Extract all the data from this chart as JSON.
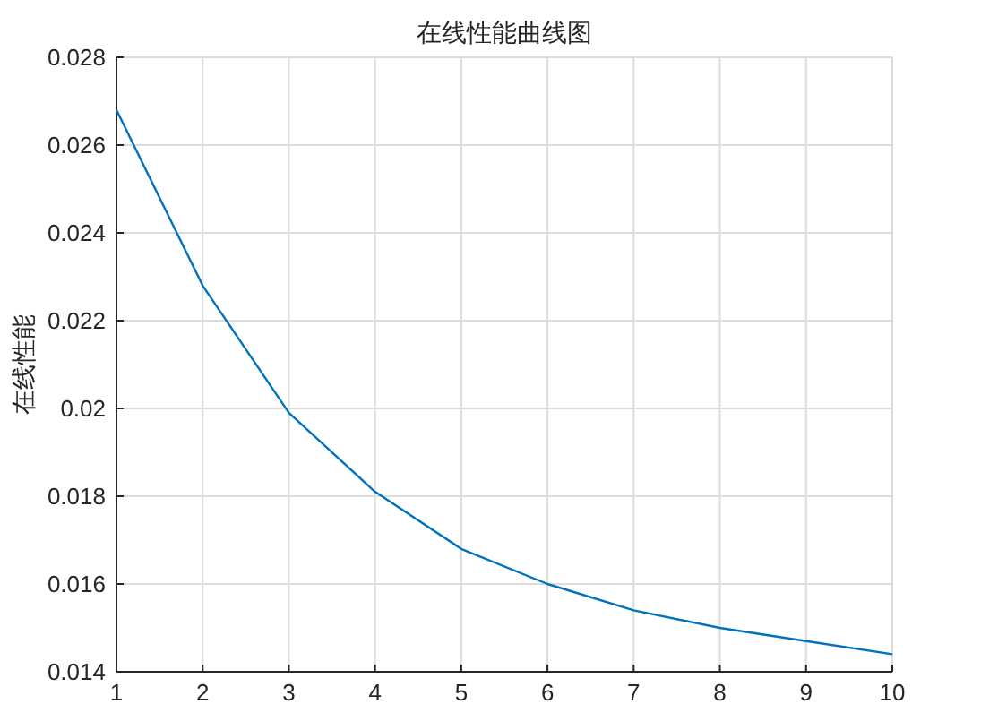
{
  "chart_data": {
    "type": "line",
    "title": "在线性能曲线图",
    "ylabel": "在线性能",
    "x": [
      1,
      2,
      3,
      4,
      5,
      6,
      7,
      8,
      9,
      10
    ],
    "series": [
      {
        "color": "#0072bd",
        "values": [
          0.0268,
          0.0228,
          0.0199,
          0.0181,
          0.0168,
          0.016,
          0.0154,
          0.015,
          0.0147,
          0.0144
        ]
      }
    ],
    "xlim": [
      1,
      10
    ],
    "xticks": [
      1,
      2,
      3,
      4,
      5,
      6,
      7,
      8,
      9,
      10
    ],
    "ylim": [
      0.014,
      0.028
    ],
    "yticks": [
      0.014,
      0.016,
      0.018,
      0.02,
      0.022,
      0.024,
      0.026,
      0.028
    ],
    "grid": true,
    "marker": "none",
    "line_style": "solid"
  }
}
